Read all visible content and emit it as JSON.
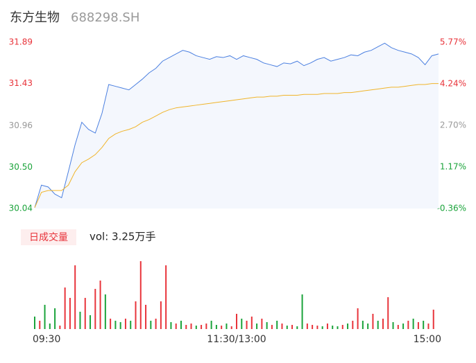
{
  "header": {
    "name": "东方生物",
    "code": "688298.SH"
  },
  "chart_data": [
    {
      "type": "line",
      "x": [
        0,
        4,
        8,
        12,
        16,
        20,
        24,
        28,
        32,
        36,
        40,
        44,
        48,
        52,
        56,
        60,
        64,
        68,
        72,
        76,
        80,
        84,
        88,
        92,
        96,
        100,
        104,
        108,
        112,
        116,
        120,
        124,
        128,
        132,
        136,
        140,
        144,
        148,
        152,
        156,
        160,
        164,
        168,
        172,
        176,
        180,
        184,
        188,
        192,
        196,
        200,
        204,
        208,
        212,
        216,
        220,
        224,
        228,
        232,
        236,
        240
      ],
      "xlim": [
        0,
        240
      ],
      "series": [
        {
          "color": "#4a7fe0",
          "area_color": "#f4f7fd",
          "values": [
            30.05,
            30.3,
            30.28,
            30.2,
            30.16,
            30.45,
            30.75,
            31.0,
            30.92,
            30.88,
            31.1,
            31.42,
            31.4,
            31.38,
            31.36,
            31.42,
            31.48,
            31.55,
            31.6,
            31.68,
            31.72,
            31.76,
            31.8,
            31.78,
            31.74,
            31.72,
            31.7,
            31.73,
            31.72,
            31.74,
            31.7,
            31.74,
            31.72,
            31.7,
            31.66,
            31.64,
            31.62,
            31.66,
            31.65,
            31.68,
            31.63,
            31.66,
            31.7,
            31.72,
            31.68,
            31.7,
            31.72,
            31.75,
            31.74,
            31.78,
            31.8,
            31.84,
            31.88,
            31.83,
            31.8,
            31.78,
            31.76,
            31.72,
            31.64,
            31.74,
            31.76
          ]
        },
        {
          "color": "#f0b429",
          "values": [
            30.05,
            30.22,
            30.24,
            30.24,
            30.24,
            30.3,
            30.45,
            30.55,
            30.59,
            30.64,
            30.72,
            30.82,
            30.87,
            30.9,
            30.92,
            30.95,
            31.0,
            31.03,
            31.07,
            31.11,
            31.14,
            31.16,
            31.17,
            31.18,
            31.19,
            31.2,
            31.21,
            31.22,
            31.23,
            31.24,
            31.25,
            31.26,
            31.27,
            31.28,
            31.28,
            31.29,
            31.29,
            31.3,
            31.3,
            31.3,
            31.31,
            31.31,
            31.31,
            31.32,
            31.32,
            31.32,
            31.33,
            31.33,
            31.34,
            31.35,
            31.36,
            31.37,
            31.38,
            31.39,
            31.39,
            31.4,
            31.41,
            31.42,
            31.42,
            31.43,
            31.43
          ]
        }
      ],
      "ylim": [
        30.04,
        31.89
      ],
      "yticks": [
        30.04,
        {
          "value": 30.5,
          "label": "30.50"
        },
        30.96,
        31.43,
        31.89
      ],
      "y2lim": [
        -0.36,
        5.77
      ],
      "y2ticks": [
        {
          "value": -0.36,
          "label": "-0.36%"
        },
        {
          "value": 1.17,
          "label": "1.17%"
        },
        {
          "value": 2.7,
          "label": "2.70%"
        },
        {
          "value": 4.24,
          "label": "4.24%"
        },
        {
          "value": 5.77,
          "label": "5.77%"
        }
      ],
      "tick_colors": [
        "#1aa33a",
        "#1aa33a",
        "#999999",
        "#e8333a",
        "#e8333a"
      ]
    },
    {
      "type": "bar",
      "title": "日成交量",
      "label": "vol: 3.25万手",
      "x": [
        0,
        3,
        6,
        9,
        12,
        15,
        18,
        21,
        24,
        27,
        30,
        33,
        36,
        39,
        42,
        45,
        48,
        51,
        54,
        57,
        60,
        63,
        66,
        69,
        72,
        75,
        78,
        81,
        84,
        87,
        90,
        93,
        96,
        99,
        102,
        105,
        108,
        111,
        114,
        117,
        120,
        123,
        126,
        129,
        132,
        135,
        138,
        141,
        144,
        147,
        150,
        153,
        156,
        159,
        162,
        165,
        168,
        171,
        174,
        177,
        180,
        183,
        186,
        189,
        192,
        195,
        198,
        201,
        204,
        207,
        210,
        213,
        216,
        219,
        222,
        225,
        228,
        231,
        234,
        237
      ],
      "xlim": [
        0,
        240
      ],
      "xticks": [
        {
          "value": 0,
          "label": "09:30"
        },
        {
          "value": 120,
          "label": "11:30/13:00"
        },
        {
          "value": 240,
          "label": "15:00"
        }
      ],
      "ylim": [
        0,
        100
      ],
      "values": [
        18,
        12,
        35,
        8,
        30,
        5,
        60,
        45,
        92,
        25,
        45,
        20,
        58,
        70,
        50,
        15,
        12,
        10,
        15,
        12,
        40,
        98,
        35,
        12,
        15,
        40,
        92,
        10,
        8,
        12,
        6,
        8,
        5,
        6,
        8,
        12,
        6,
        5,
        8,
        4,
        22,
        15,
        12,
        18,
        8,
        15,
        10,
        6,
        12,
        8,
        5,
        6,
        4,
        50,
        8,
        6,
        5,
        4,
        8,
        5,
        4,
        6,
        8,
        12,
        30,
        12,
        8,
        22,
        12,
        15,
        46,
        10,
        6,
        8,
        12,
        15,
        10,
        12,
        8,
        28
      ],
      "colors": [
        "#1aa33a",
        "#e8333a",
        "#1aa33a",
        "#1aa33a",
        "#1aa33a",
        "#e8333a",
        "#e8333a",
        "#e8333a",
        "#e8333a",
        "#1aa33a",
        "#e8333a",
        "#1aa33a",
        "#e8333a",
        "#e8333a",
        "#1aa33a",
        "#e8333a",
        "#1aa33a",
        "#1aa33a",
        "#e8333a",
        "#1aa33a",
        "#e8333a",
        "#e8333a",
        "#e8333a",
        "#1aa33a",
        "#e8333a",
        "#e8333a",
        "#e8333a",
        "#1aa33a",
        "#e8333a",
        "#1aa33a",
        "#e8333a",
        "#e8333a",
        "#1aa33a",
        "#e8333a",
        "#e8333a",
        "#1aa33a",
        "#1aa33a",
        "#e8333a",
        "#1aa33a",
        "#e8333a",
        "#e8333a",
        "#1aa33a",
        "#e8333a",
        "#e8333a",
        "#1aa33a",
        "#e8333a",
        "#1aa33a",
        "#e8333a",
        "#1aa33a",
        "#e8333a",
        "#1aa33a",
        "#e8333a",
        "#1aa33a",
        "#1aa33a",
        "#e8333a",
        "#e8333a",
        "#e8333a",
        "#1aa33a",
        "#e8333a",
        "#1aa33a",
        "#1aa33a",
        "#e8333a",
        "#1aa33a",
        "#e8333a",
        "#e8333a",
        "#1aa33a",
        "#1aa33a",
        "#e8333a",
        "#1aa33a",
        "#e8333a",
        "#e8333a",
        "#1aa33a",
        "#e8333a",
        "#1aa33a",
        "#e8333a",
        "#1aa33a",
        "#e8333a",
        "#1aa33a",
        "#e8333a",
        "#e8333a"
      ]
    }
  ]
}
